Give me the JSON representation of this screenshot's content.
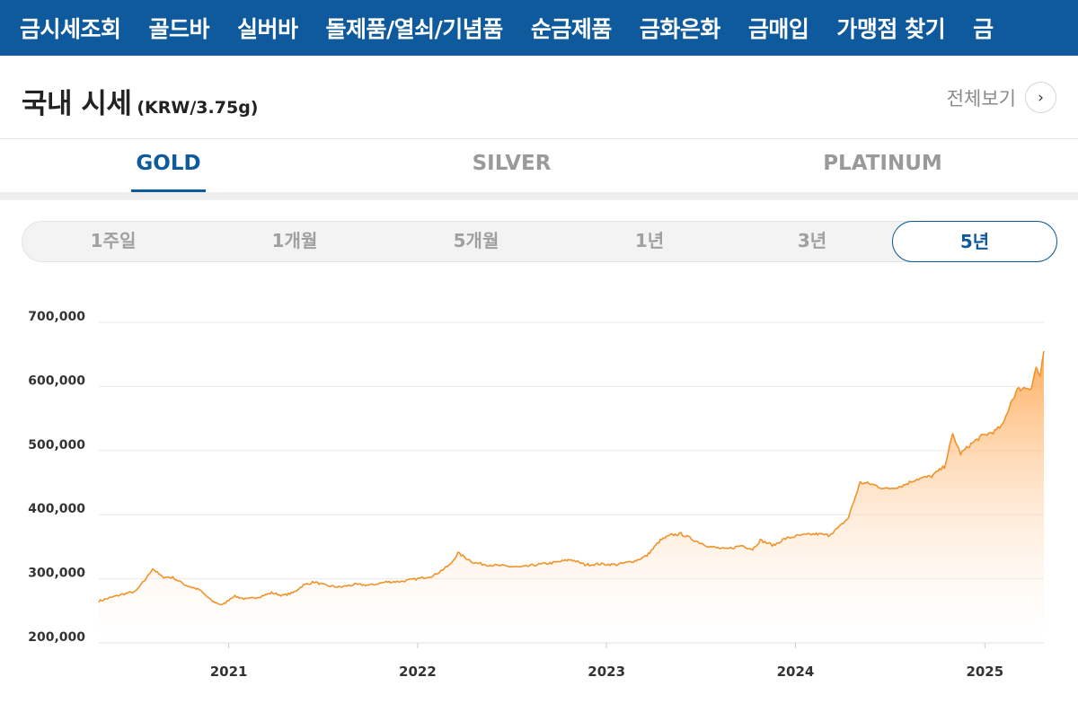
{
  "nav": {
    "items": [
      "금시세조회",
      "골드바",
      "실버바",
      "돌제품/열쇠/기념품",
      "순금제품",
      "금화은화",
      "금매입",
      "가맹점 찾기",
      "금"
    ]
  },
  "header": {
    "title": "국내 시세",
    "unit": "(KRW/3.75g)",
    "view_all": "전체보기"
  },
  "metal_tabs": {
    "items": [
      "GOLD",
      "SILVER",
      "PLATINUM"
    ],
    "active": "GOLD"
  },
  "periods": {
    "items": [
      "1주일",
      "1개월",
      "5개월",
      "1년",
      "3년",
      "5년"
    ],
    "active": "5년"
  },
  "colors": {
    "brand": "#0e5a9c",
    "line": "#f0932b",
    "fill_top": "#ffa34a",
    "grid": "#e8e8e8"
  },
  "chart_data": {
    "type": "area",
    "title": "",
    "xlabel": "",
    "ylabel": "",
    "ylim": [
      200000,
      700000
    ],
    "yticks": [
      200000,
      300000,
      400000,
      500000,
      600000,
      700000
    ],
    "ytick_labels": [
      "200,000",
      "300,000",
      "400,000",
      "500,000",
      "600,000",
      "700,000"
    ],
    "xlim": [
      "2020-04-25",
      "2025-04-25"
    ],
    "xticks": [
      "2021-01-01",
      "2022-01-01",
      "2023-01-01",
      "2024-01-01",
      "2025-01-01"
    ],
    "xtick_labels": [
      "2021",
      "2022",
      "2023",
      "2024",
      "2025"
    ],
    "grid": true,
    "series": [
      {
        "x": [
          "2020-04-25",
          "2020-05-15",
          "2020-06-10",
          "2020-07-05",
          "2020-07-25",
          "2020-08-07",
          "2020-08-25",
          "2020-09-15",
          "2020-10-10",
          "2020-11-05",
          "2020-11-30",
          "2020-12-20",
          "2021-01-10",
          "2021-02-05",
          "2021-03-01",
          "2021-03-25",
          "2021-04-15",
          "2021-05-05",
          "2021-05-25",
          "2021-06-15",
          "2021-07-10",
          "2021-08-05",
          "2021-09-01",
          "2021-10-01",
          "2021-11-01",
          "2021-12-01",
          "2022-01-01",
          "2022-02-01",
          "2022-03-05",
          "2022-03-20",
          "2022-04-20",
          "2022-05-15",
          "2022-06-15",
          "2022-07-20",
          "2022-08-20",
          "2022-09-20",
          "2022-10-25",
          "2022-11-20",
          "2022-12-20",
          "2023-01-20",
          "2023-02-25",
          "2023-03-20",
          "2023-04-15",
          "2023-05-05",
          "2023-05-25",
          "2023-06-20",
          "2023-07-20",
          "2023-08-20",
          "2023-09-20",
          "2023-10-10",
          "2023-10-25",
          "2023-11-20",
          "2023-12-10",
          "2024-01-05",
          "2024-02-10",
          "2024-03-05",
          "2024-03-25",
          "2024-04-12",
          "2024-05-05",
          "2024-05-25",
          "2024-06-25",
          "2024-07-25",
          "2024-08-20",
          "2024-09-20",
          "2024-10-15",
          "2024-10-31",
          "2024-11-15",
          "2024-12-05",
          "2024-12-25",
          "2025-01-20",
          "2025-02-05",
          "2025-02-20",
          "2025-03-05",
          "2025-03-20",
          "2025-04-01",
          "2025-04-10",
          "2025-04-18",
          "2025-04-25"
        ],
        "y": [
          265000,
          270000,
          276000,
          280000,
          300000,
          316000,
          303000,
          302000,
          290000,
          283000,
          265000,
          259000,
          273000,
          268000,
          272000,
          278000,
          274000,
          278000,
          290000,
          295000,
          289000,
          287000,
          291000,
          290000,
          295000,
          296000,
          300000,
          305000,
          322000,
          340000,
          325000,
          322000,
          320000,
          318000,
          322000,
          325000,
          330000,
          322000,
          323000,
          322000,
          328000,
          336000,
          360000,
          368000,
          370000,
          360000,
          350000,
          346000,
          352000,
          346000,
          360000,
          352000,
          362000,
          367000,
          370000,
          368000,
          380000,
          395000,
          450000,
          448000,
          440000,
          445000,
          455000,
          460000,
          475000,
          525000,
          495000,
          510000,
          522000,
          530000,
          540000,
          575000,
          595000,
          598000,
          598000,
          630000,
          615000,
          655000
        ]
      }
    ]
  }
}
